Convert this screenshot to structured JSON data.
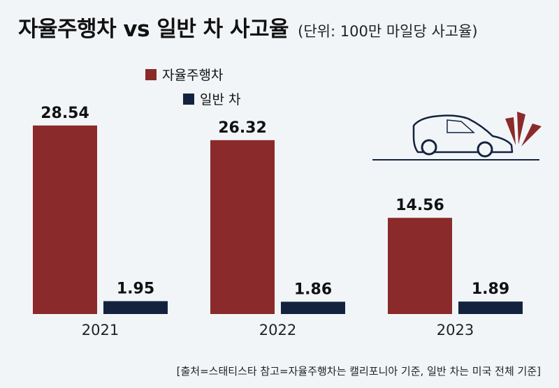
{
  "header": {
    "title": "자율주행차 vs 일반 차 사고율",
    "unit": "(단위: 100만 마일당 사고율)"
  },
  "footer": {
    "source": "[출처=스태티스타  참고=자율주행차는 캘리포니아 기준, 일반 차는 미국 전체 기준]"
  },
  "colors": {
    "autonomous": "#8b2a2a",
    "regular": "#13233f",
    "background": "#f2f5f8"
  },
  "icons": {
    "decoration": "car-crash-icon"
  },
  "chart_data": {
    "type": "bar",
    "title": "자율주행차 vs 일반 차 사고율",
    "subtitle": "(단위: 100만 마일당 사고율)",
    "xlabel": "",
    "ylabel": "",
    "categories": [
      "2021",
      "2022",
      "2023"
    ],
    "series": [
      {
        "name": "자율주행차",
        "values": [
          28.54,
          26.32,
          14.56
        ]
      },
      {
        "name": "일반 차",
        "values": [
          1.95,
          1.86,
          1.89
        ]
      }
    ],
    "ylim": [
      0,
      30
    ],
    "grid": false,
    "legend": "top-left"
  }
}
